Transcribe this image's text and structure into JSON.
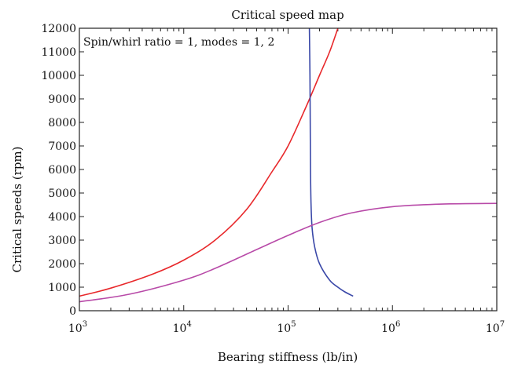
{
  "chart_data": {
    "type": "line",
    "title": "Critical speed map",
    "annotation": "Spin/whirl ratio = 1, modes = 1, 2",
    "xlabel": "Bearing stiffness (lb/in)",
    "ylabel": "Critical speeds (rpm)",
    "xscale": "log",
    "xlim": [
      1000,
      10000000
    ],
    "ylim": [
      0,
      12000
    ],
    "x_ticks": [
      {
        "value": 1000,
        "base": "10",
        "exp": "3"
      },
      {
        "value": 10000,
        "base": "10",
        "exp": "4"
      },
      {
        "value": 100000,
        "base": "10",
        "exp": "5"
      },
      {
        "value": 1000000,
        "base": "10",
        "exp": "6"
      },
      {
        "value": 10000000,
        "base": "10",
        "exp": "7"
      }
    ],
    "y_ticks": [
      0,
      1000,
      2000,
      3000,
      4000,
      5000,
      6000,
      7000,
      8000,
      9000,
      10000,
      11000,
      12000
    ],
    "grid": false,
    "series": [
      {
        "color": "#e8282b",
        "x": [
          1000,
          2000,
          5000,
          10000,
          20000,
          40000,
          70000,
          100000,
          150000,
          200000,
          250000,
          300000
        ],
        "y": [
          620,
          960,
          1550,
          2150,
          3000,
          4300,
          5900,
          7000,
          8700,
          10000,
          11000,
          12000
        ]
      },
      {
        "color": "#3a48a8",
        "x": [
          160000,
          162000,
          163000,
          164000,
          166000,
          170000,
          180000,
          200000,
          250000,
          300000,
          350000,
          420000
        ],
        "y": [
          12000,
          10000,
          8000,
          6000,
          4500,
          3500,
          2700,
          2000,
          1300,
          1000,
          800,
          620
        ]
      },
      {
        "color": "#b84aa8",
        "x": [
          1000,
          3000,
          10000,
          20000,
          50000,
          100000,
          200000,
          400000,
          1000000,
          3000000,
          10000000
        ],
        "y": [
          380,
          700,
          1300,
          1800,
          2600,
          3200,
          3750,
          4150,
          4420,
          4530,
          4560
        ]
      }
    ]
  }
}
